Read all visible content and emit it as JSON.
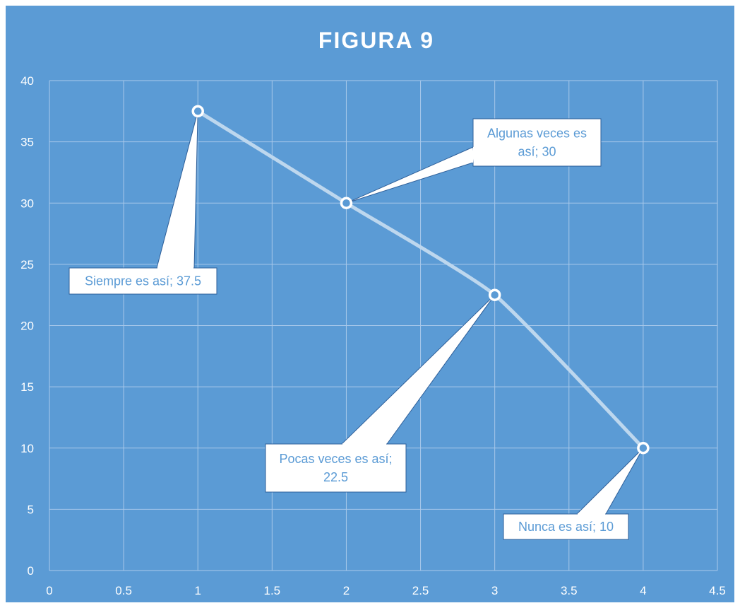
{
  "colors": {
    "plot_background": "#5b9bd5",
    "line": "#bdd7ee",
    "gridline": "#a8c8ea",
    "text": "#ffffff",
    "callout_fill": "#ffffff",
    "callout_border": "#2e5f99",
    "callout_text": "#5b9bd5"
  },
  "chart_data": {
    "type": "scatter",
    "style": "smooth line with markers",
    "title": "FIGURA 9",
    "xlabel": "",
    "ylabel": "",
    "xlim": [
      0,
      4.5
    ],
    "ylim": [
      0,
      40
    ],
    "x_ticks": [
      "0",
      "0.5",
      "1",
      "1.5",
      "2",
      "2.5",
      "3",
      "3.5",
      "4",
      "4.5"
    ],
    "y_ticks": [
      "0",
      "5",
      "10",
      "15",
      "20",
      "25",
      "30",
      "35",
      "40"
    ],
    "grid": true,
    "legend": "none",
    "series": [
      {
        "x": [
          1,
          2,
          3,
          4
        ],
        "y": [
          37.5,
          30,
          22.5,
          10
        ],
        "data_labels": [
          [
            "Siempre es así; 37.5"
          ],
          [
            "Algunas veces es",
            "así; 30"
          ],
          [
            "Pocas veces es así;",
            "22.5"
          ],
          [
            "Nunca es así; 10"
          ]
        ]
      }
    ]
  }
}
